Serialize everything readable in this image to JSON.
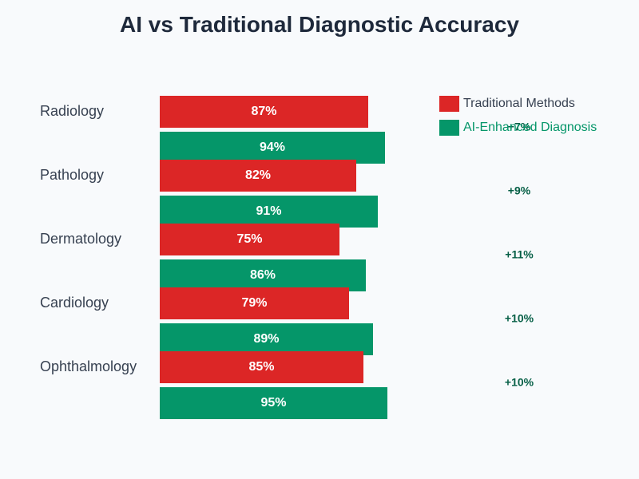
{
  "chart_data": {
    "type": "bar",
    "orientation": "horizontal",
    "title": "AI vs Traditional Diagnostic Accuracy",
    "categories": [
      "Radiology",
      "Pathology",
      "Dermatology",
      "Cardiology",
      "Ophthalmology"
    ],
    "series": [
      {
        "name": "Traditional Methods",
        "color": "#dc2626",
        "values": [
          87,
          82,
          75,
          79,
          85
        ]
      },
      {
        "name": "AI-Enhanced Diagnosis",
        "color": "#059669",
        "values": [
          94,
          91,
          86,
          89,
          95
        ]
      }
    ],
    "differences": [
      "+7%",
      "+9%",
      "+11%",
      "+10%",
      "+10%"
    ],
    "value_suffix": "%",
    "xlim": [
      0,
      100
    ],
    "legend_position": "top-right",
    "legend_text_colors": [
      "#374151",
      "#059669"
    ]
  }
}
